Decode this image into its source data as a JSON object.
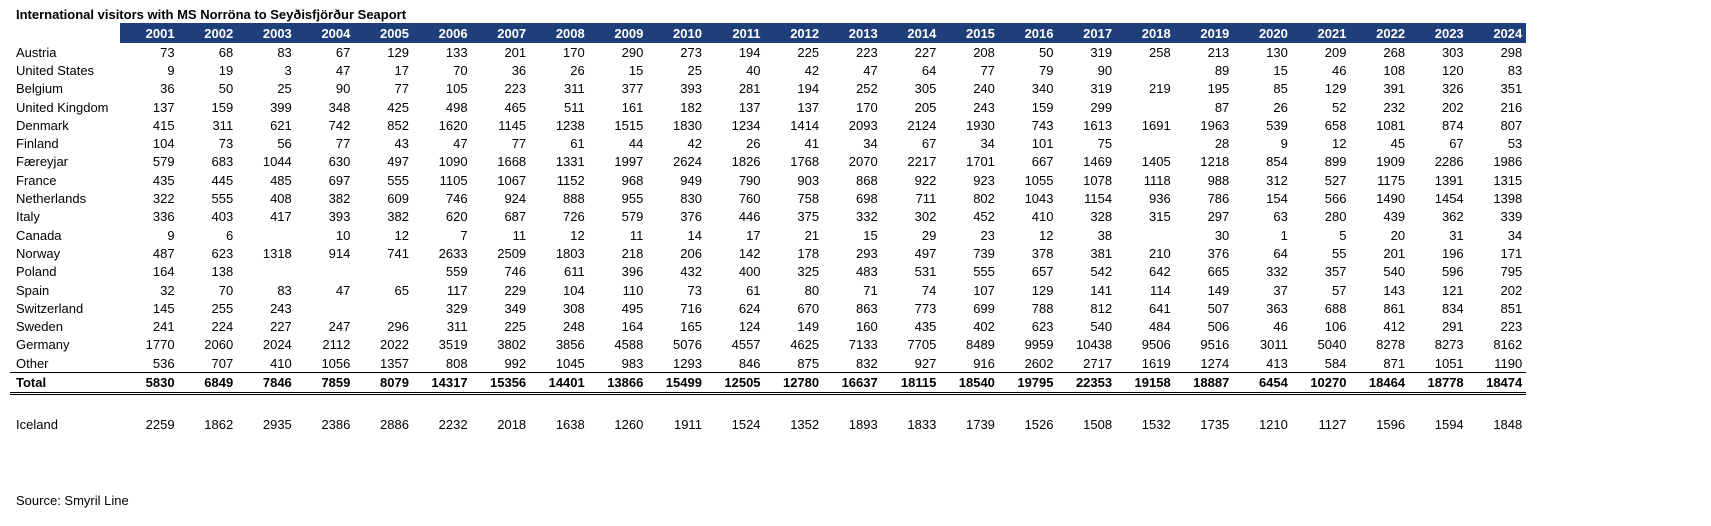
{
  "title": "International visitors with MS Norröna to Seyðisfjörður Seaport",
  "years": [
    "2001",
    "2002",
    "2003",
    "2004",
    "2005",
    "2006",
    "2007",
    "2008",
    "2009",
    "2010",
    "2011",
    "2012",
    "2013",
    "2014",
    "2015",
    "2016",
    "2017",
    "2018",
    "2019",
    "2020",
    "2021",
    "2022",
    "2023",
    "2024"
  ],
  "rows": [
    {
      "country": "Austria",
      "values": [
        "73",
        "68",
        "83",
        "67",
        "129",
        "133",
        "201",
        "170",
        "290",
        "273",
        "194",
        "225",
        "223",
        "227",
        "208",
        "50",
        "319",
        "258",
        "213",
        "130",
        "209",
        "268",
        "303",
        "298"
      ]
    },
    {
      "country": "United States",
      "values": [
        "9",
        "19",
        "3",
        "47",
        "17",
        "70",
        "36",
        "26",
        "15",
        "25",
        "40",
        "42",
        "47",
        "64",
        "77",
        "79",
        "90",
        "",
        "89",
        "15",
        "46",
        "108",
        "120",
        "83"
      ]
    },
    {
      "country": "Belgium",
      "values": [
        "36",
        "50",
        "25",
        "90",
        "77",
        "105",
        "223",
        "311",
        "377",
        "393",
        "281",
        "194",
        "252",
        "305",
        "240",
        "340",
        "319",
        "219",
        "195",
        "85",
        "129",
        "391",
        "326",
        "351"
      ]
    },
    {
      "country": "United Kingdom",
      "values": [
        "137",
        "159",
        "399",
        "348",
        "425",
        "498",
        "465",
        "511",
        "161",
        "182",
        "137",
        "137",
        "170",
        "205",
        "243",
        "159",
        "299",
        "",
        "87",
        "26",
        "52",
        "232",
        "202",
        "216"
      ]
    },
    {
      "country": "Denmark",
      "values": [
        "415",
        "311",
        "621",
        "742",
        "852",
        "1620",
        "1145",
        "1238",
        "1515",
        "1830",
        "1234",
        "1414",
        "2093",
        "2124",
        "1930",
        "743",
        "1613",
        "1691",
        "1963",
        "539",
        "658",
        "1081",
        "874",
        "807"
      ]
    },
    {
      "country": "Finland",
      "values": [
        "104",
        "73",
        "56",
        "77",
        "43",
        "47",
        "77",
        "61",
        "44",
        "42",
        "26",
        "41",
        "34",
        "67",
        "34",
        "101",
        "75",
        "",
        "28",
        "9",
        "12",
        "45",
        "67",
        "53"
      ]
    },
    {
      "country": "Færeyjar",
      "values": [
        "579",
        "683",
        "1044",
        "630",
        "497",
        "1090",
        "1668",
        "1331",
        "1997",
        "2624",
        "1826",
        "1768",
        "2070",
        "2217",
        "1701",
        "667",
        "1469",
        "1405",
        "1218",
        "854",
        "899",
        "1909",
        "2286",
        "1986"
      ]
    },
    {
      "country": "France",
      "values": [
        "435",
        "445",
        "485",
        "697",
        "555",
        "1105",
        "1067",
        "1152",
        "968",
        "949",
        "790",
        "903",
        "868",
        "922",
        "923",
        "1055",
        "1078",
        "1118",
        "988",
        "312",
        "527",
        "1175",
        "1391",
        "1315"
      ]
    },
    {
      "country": "Netherlands",
      "values": [
        "322",
        "555",
        "408",
        "382",
        "609",
        "746",
        "924",
        "888",
        "955",
        "830",
        "760",
        "758",
        "698",
        "711",
        "802",
        "1043",
        "1154",
        "936",
        "786",
        "154",
        "566",
        "1490",
        "1454",
        "1398"
      ]
    },
    {
      "country": "Italy",
      "values": [
        "336",
        "403",
        "417",
        "393",
        "382",
        "620",
        "687",
        "726",
        "579",
        "376",
        "446",
        "375",
        "332",
        "302",
        "452",
        "410",
        "328",
        "315",
        "297",
        "63",
        "280",
        "439",
        "362",
        "339"
      ]
    },
    {
      "country": "Canada",
      "values": [
        "9",
        "6",
        "",
        "10",
        "12",
        "7",
        "11",
        "12",
        "11",
        "14",
        "17",
        "21",
        "15",
        "29",
        "23",
        "12",
        "38",
        "",
        "30",
        "1",
        "5",
        "20",
        "31",
        "34"
      ]
    },
    {
      "country": "Norway",
      "values": [
        "487",
        "623",
        "1318",
        "914",
        "741",
        "2633",
        "2509",
        "1803",
        "218",
        "206",
        "142",
        "178",
        "293",
        "497",
        "739",
        "378",
        "381",
        "210",
        "376",
        "64",
        "55",
        "201",
        "196",
        "171"
      ]
    },
    {
      "country": "Poland",
      "values": [
        "164",
        "138",
        "",
        "",
        "",
        "559",
        "746",
        "611",
        "396",
        "432",
        "400",
        "325",
        "483",
        "531",
        "555",
        "657",
        "542",
        "642",
        "665",
        "332",
        "357",
        "540",
        "596",
        "795"
      ]
    },
    {
      "country": "Spain",
      "values": [
        "32",
        "70",
        "83",
        "47",
        "65",
        "117",
        "229",
        "104",
        "110",
        "73",
        "61",
        "80",
        "71",
        "74",
        "107",
        "129",
        "141",
        "114",
        "149",
        "37",
        "57",
        "143",
        "121",
        "202"
      ]
    },
    {
      "country": "Switzerland",
      "values": [
        "145",
        "255",
        "243",
        "",
        "",
        "329",
        "349",
        "308",
        "495",
        "716",
        "624",
        "670",
        "863",
        "773",
        "699",
        "788",
        "812",
        "641",
        "507",
        "363",
        "688",
        "861",
        "834",
        "851"
      ]
    },
    {
      "country": "Sweden",
      "values": [
        "241",
        "224",
        "227",
        "247",
        "296",
        "311",
        "225",
        "248",
        "164",
        "165",
        "124",
        "149",
        "160",
        "435",
        "402",
        "623",
        "540",
        "484",
        "506",
        "46",
        "106",
        "412",
        "291",
        "223"
      ]
    },
    {
      "country": "Germany",
      "values": [
        "1770",
        "2060",
        "2024",
        "2112",
        "2022",
        "3519",
        "3802",
        "3856",
        "4588",
        "5076",
        "4557",
        "4625",
        "7133",
        "7705",
        "8489",
        "9959",
        "10438",
        "9506",
        "9516",
        "3011",
        "5040",
        "8278",
        "8273",
        "8162"
      ]
    },
    {
      "country": "Other",
      "values": [
        "536",
        "707",
        "410",
        "1056",
        "1357",
        "808",
        "992",
        "1045",
        "983",
        "1293",
        "846",
        "875",
        "832",
        "927",
        "916",
        "2602",
        "2717",
        "1619",
        "1274",
        "413",
        "584",
        "871",
        "1051",
        "1190"
      ]
    }
  ],
  "total": {
    "label": "Total",
    "values": [
      "5830",
      "6849",
      "7846",
      "7859",
      "8079",
      "14317",
      "15356",
      "14401",
      "13866",
      "15499",
      "12505",
      "12780",
      "16637",
      "18115",
      "18540",
      "19795",
      "22353",
      "19158",
      "18887",
      "6454",
      "10270",
      "18464",
      "18778",
      "18474"
    ]
  },
  "iceland": {
    "label": "Iceland",
    "values": [
      "2259",
      "1862",
      "2935",
      "2386",
      "2886",
      "2232",
      "2018",
      "1638",
      "1260",
      "1911",
      "1524",
      "1352",
      "1893",
      "1833",
      "1739",
      "1526",
      "1508",
      "1532",
      "1735",
      "1210",
      "1127",
      "1596",
      "1594",
      "1848"
    ]
  },
  "source": "Source: Smyril Line",
  "colors": {
    "header_bg": "#1f3f7a",
    "header_text": "#ffffff"
  }
}
